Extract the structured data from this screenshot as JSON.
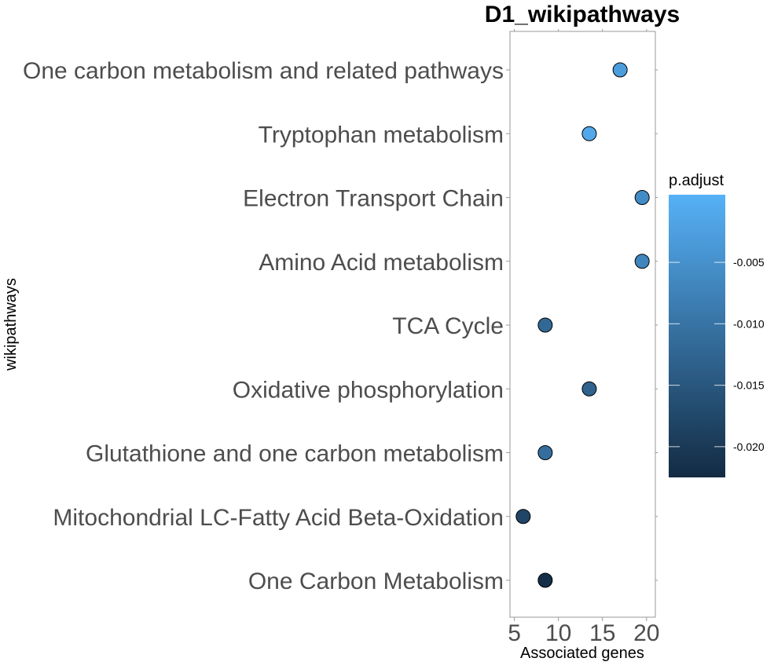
{
  "chart_data": {
    "type": "scatter",
    "title": "D1_wikipathways",
    "xlabel": "Associated genes",
    "ylabel": "wikipathways",
    "xlim": [
      4.5,
      21
    ],
    "x_ticks": [
      5,
      10,
      15,
      20
    ],
    "grid": false,
    "legend": {
      "title": "p.adjust",
      "placement": "right",
      "range": [
        -0.0225,
        0.0005
      ],
      "ticks": [
        -0.005,
        -0.01,
        -0.015,
        -0.02
      ],
      "tick_labels": [
        "-0.005",
        "-0.010",
        "-0.015",
        "-0.020"
      ],
      "color_low": "#132B43",
      "color_high": "#56B1F7"
    },
    "categories": [
      "One carbon metabolism and related pathways",
      "Tryptophan metabolism",
      "Electron Transport Chain",
      "Amino Acid metabolism",
      "TCA Cycle",
      "Oxidative phosphorylation",
      "Glutathione and one carbon metabolism",
      "Mitochondrial LC-Fatty Acid Beta-Oxidation",
      "One Carbon Metabolism"
    ],
    "points": [
      {
        "y": "One carbon metabolism and related pathways",
        "x": 17,
        "p_adjust": -0.003
      },
      {
        "y": "Tryptophan metabolism",
        "x": 13.5,
        "p_adjust": -0.001
      },
      {
        "y": "Electron Transport Chain",
        "x": 19.5,
        "p_adjust": -0.006
      },
      {
        "y": "Amino Acid metabolism",
        "x": 19.5,
        "p_adjust": -0.007
      },
      {
        "y": "TCA Cycle",
        "x": 8.5,
        "p_adjust": -0.012
      },
      {
        "y": "Oxidative phosphorylation",
        "x": 13.5,
        "p_adjust": -0.013
      },
      {
        "y": "Glutathione and one carbon metabolism",
        "x": 8.5,
        "p_adjust": -0.011
      },
      {
        "y": "Mitochondrial LC-Fatty Acid Beta-Oxidation",
        "x": 6,
        "p_adjust": -0.018
      },
      {
        "y": "One Carbon Metabolism",
        "x": 8.5,
        "p_adjust": -0.022
      }
    ]
  }
}
